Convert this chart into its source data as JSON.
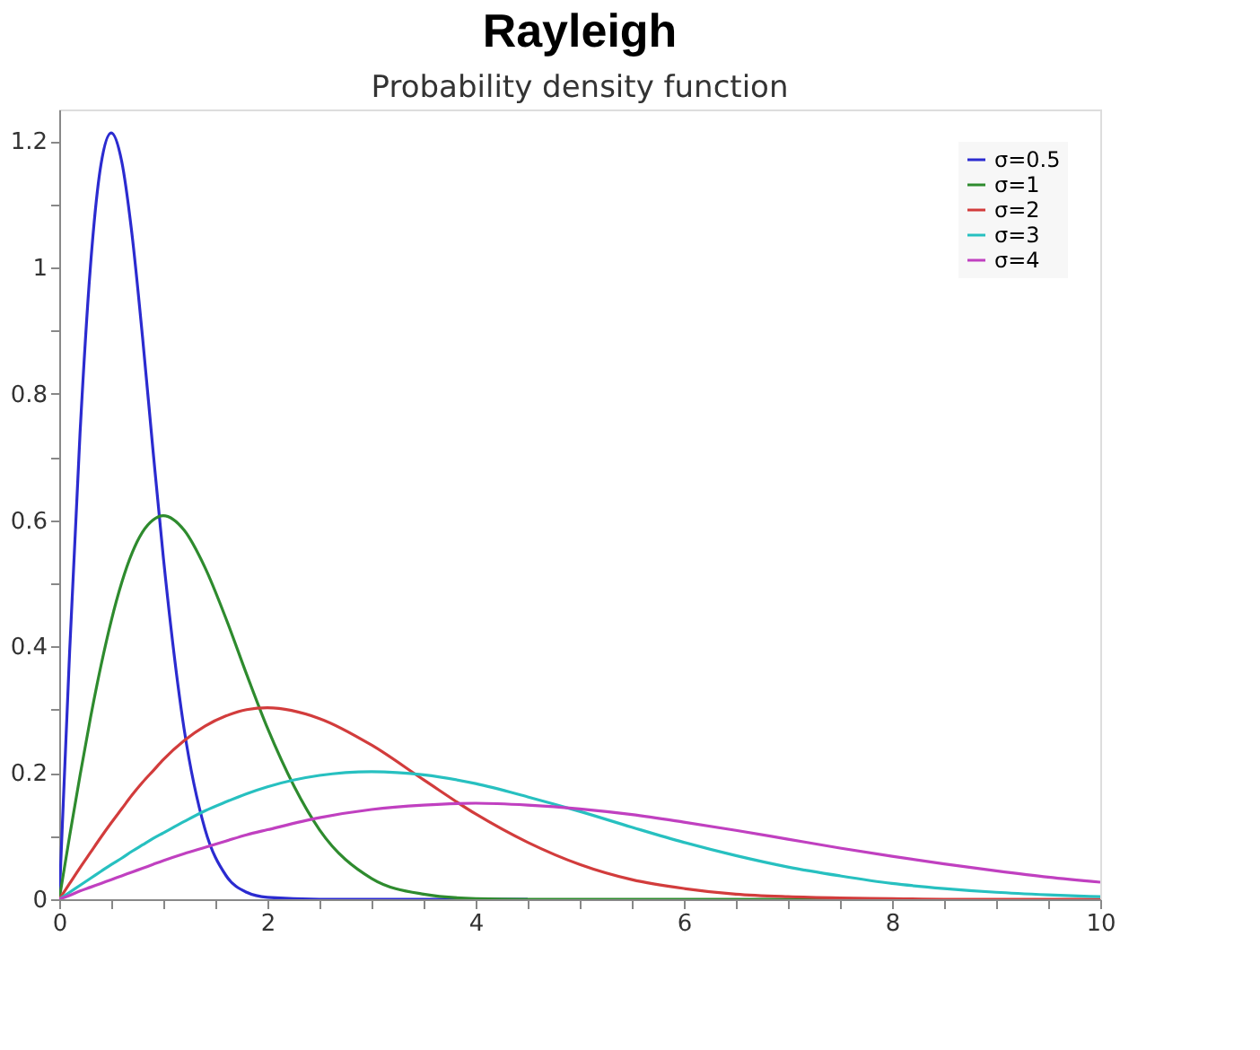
{
  "chart_data": {
    "type": "line",
    "title": "Rayleigh",
    "subtitle": "Probability density function",
    "x": [
      0,
      0.1,
      0.2,
      0.3,
      0.4,
      0.5,
      0.6,
      0.7,
      0.8,
      0.9,
      1.0,
      1.2,
      1.4,
      1.6,
      1.8,
      2.0,
      2.5,
      3,
      3.5,
      4,
      4.5,
      5,
      5.5,
      6,
      6.5,
      7,
      7.5,
      8,
      8.5,
      9,
      9.5,
      10
    ],
    "series": [
      {
        "name": "σ=0.5",
        "color": "#2b2bd0",
        "values": [
          0,
          0.392,
          0.738,
          1.002,
          1.162,
          1.213,
          1.168,
          1.051,
          0.89,
          0.712,
          0.541,
          0.269,
          0.111,
          0.038,
          0.011,
          0.003,
          0,
          0,
          0,
          0,
          0,
          null,
          null,
          null,
          null,
          null,
          null,
          null,
          null,
          null,
          null,
          null
        ]
      },
      {
        "name": "σ=1",
        "color": "#2e8b2e",
        "values": [
          0,
          0.1,
          0.196,
          0.287,
          0.369,
          0.441,
          0.501,
          0.548,
          0.581,
          0.6,
          0.607,
          0.584,
          0.525,
          0.445,
          0.356,
          0.271,
          0.11,
          0.033,
          0.008,
          0.001,
          0,
          0,
          0,
          0,
          0,
          0,
          0,
          null,
          null,
          null,
          null,
          null
        ]
      },
      {
        "name": "σ=2",
        "color": "#d23c3c",
        "values": [
          0,
          0.025,
          0.05,
          0.074,
          0.098,
          0.121,
          0.143,
          0.165,
          0.185,
          0.203,
          0.221,
          0.251,
          0.274,
          0.29,
          0.3,
          0.303,
          0.286,
          0.244,
          0.189,
          0.135,
          0.09,
          0.055,
          0.031,
          0.017,
          0.008,
          0.004,
          0.002,
          0.001,
          0,
          0,
          0,
          0
        ]
      },
      {
        "name": "σ=3",
        "color": "#27c0c0",
        "values": [
          0,
          0.011,
          0.022,
          0.033,
          0.044,
          0.055,
          0.065,
          0.076,
          0.086,
          0.096,
          0.105,
          0.123,
          0.14,
          0.154,
          0.167,
          0.178,
          0.196,
          0.202,
          0.197,
          0.183,
          0.162,
          0.139,
          0.114,
          0.09,
          0.069,
          0.051,
          0.037,
          0.025,
          0.017,
          0.011,
          0.007,
          0.004
        ]
      },
      {
        "name": "σ=4",
        "color": "#c040c0",
        "values": [
          0,
          0.006,
          0.013,
          0.019,
          0.025,
          0.031,
          0.037,
          0.043,
          0.049,
          0.055,
          0.061,
          0.072,
          0.082,
          0.092,
          0.102,
          0.11,
          0.129,
          0.142,
          0.149,
          0.152,
          0.149,
          0.143,
          0.134,
          0.122,
          0.109,
          0.095,
          0.081,
          0.068,
          0.056,
          0.045,
          0.035,
          0.027
        ]
      }
    ],
    "xlim": [
      0,
      10
    ],
    "xticks": [
      0,
      {
        "value": 0.5,
        "label": null
      },
      {
        "value": 1,
        "label": null
      },
      {
        "value": 1.5,
        "label": null
      },
      2,
      {
        "value": 2.5,
        "label": null
      },
      {
        "value": 3,
        "label": null
      },
      {
        "value": 3.5,
        "label": null
      },
      4,
      {
        "value": 4.5,
        "label": null
      },
      {
        "value": 5,
        "label": null
      },
      {
        "value": 5.5,
        "label": null
      },
      6,
      {
        "value": 6.5,
        "label": null
      },
      {
        "value": 7,
        "label": null
      },
      {
        "value": 7.5,
        "label": null
      },
      8,
      {
        "value": 8.5,
        "label": null
      },
      {
        "value": 9,
        "label": null
      },
      {
        "value": 9.5,
        "label": null
      },
      10
    ],
    "ylim": [
      0,
      1.25
    ],
    "yticks": [
      0,
      {
        "value": 0.1,
        "label": null
      },
      0.2,
      {
        "value": 0.3,
        "label": null
      },
      0.4,
      {
        "value": 0.5,
        "label": null
      },
      0.6,
      {
        "value": 0.7,
        "label": null
      },
      0.8,
      {
        "value": 0.9,
        "label": null
      },
      1,
      {
        "value": 1.1,
        "label": null
      },
      1.2
    ],
    "grid": false,
    "legend": "top right",
    "line_style": "solid",
    "marker": "none"
  }
}
